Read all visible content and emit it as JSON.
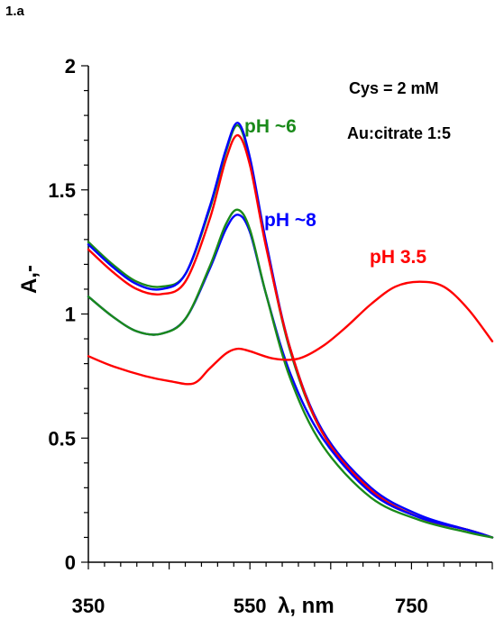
{
  "panel_label": "1.a",
  "annotations": [
    "Cys = 2 mM",
    "Au:citrate 1:5"
  ],
  "colors": {
    "red": "#ff0000",
    "green": "#1a8a1a",
    "blue": "#0000ff",
    "axis": "#000000"
  },
  "chart_data": {
    "type": "line",
    "title": "",
    "xlabel": "λ, nm",
    "ylabel": "A,-",
    "xlim": [
      350,
      850
    ],
    "ylim": [
      0,
      2
    ],
    "x_ticks": [
      350,
      550,
      750
    ],
    "y_ticks": [
      0,
      0.5,
      1,
      1.5,
      2
    ],
    "y_tick_labels": [
      "0",
      "0.5",
      "1",
      "1.5",
      "2"
    ],
    "grid": false,
    "series": [
      {
        "name": "pH ~6",
        "color": "#1a8a1a",
        "x": [
          350,
          380,
          410,
          440,
          470,
          500,
          520,
          535,
          550,
          570,
          600,
          640,
          700,
          760,
          820,
          850
        ],
        "y": [
          1.29,
          1.2,
          1.13,
          1.11,
          1.16,
          1.42,
          1.65,
          1.76,
          1.62,
          1.28,
          0.85,
          0.52,
          0.29,
          0.18,
          0.13,
          0.1
        ]
      },
      {
        "x": [
          350,
          380,
          410,
          440,
          470,
          500,
          520,
          535,
          550,
          570,
          600,
          640,
          700,
          760,
          820,
          850
        ],
        "y": [
          1.28,
          1.19,
          1.12,
          1.1,
          1.16,
          1.43,
          1.66,
          1.77,
          1.63,
          1.29,
          0.86,
          0.53,
          0.3,
          0.19,
          0.13,
          0.1
        ],
        "color": "#0000ff"
      },
      {
        "x": [
          350,
          380,
          410,
          440,
          470,
          500,
          520,
          535,
          550,
          570,
          600,
          640,
          700,
          760,
          820,
          850
        ],
        "y": [
          1.26,
          1.17,
          1.1,
          1.08,
          1.13,
          1.38,
          1.62,
          1.72,
          1.6,
          1.27,
          0.86,
          0.52,
          0.29,
          0.18,
          0.13,
          0.1
        ],
        "color": "#ff0000"
      },
      {
        "name": "pH ~8",
        "color": "#0000ff",
        "x": [
          350,
          380,
          410,
          440,
          470,
          500,
          520,
          535,
          550,
          570,
          600,
          640,
          700,
          760,
          820,
          850
        ],
        "y": [
          1.07,
          0.99,
          0.93,
          0.92,
          0.98,
          1.18,
          1.34,
          1.4,
          1.33,
          1.08,
          0.76,
          0.5,
          0.28,
          0.18,
          0.13,
          0.1
        ]
      },
      {
        "x": [
          350,
          380,
          410,
          440,
          470,
          500,
          520,
          535,
          550,
          570,
          600,
          640,
          700,
          760,
          820,
          850
        ],
        "y": [
          1.07,
          0.99,
          0.93,
          0.92,
          0.98,
          1.19,
          1.36,
          1.42,
          1.34,
          1.08,
          0.74,
          0.47,
          0.26,
          0.17,
          0.12,
          0.1
        ],
        "color": "#1a8a1a"
      },
      {
        "name": "pH 3.5",
        "color": "#ff0000",
        "x": [
          350,
          380,
          420,
          450,
          480,
          500,
          520,
          535,
          550,
          580,
          610,
          640,
          670,
          700,
          730,
          760,
          790,
          820,
          850
        ],
        "y": [
          0.83,
          0.79,
          0.75,
          0.73,
          0.72,
          0.78,
          0.84,
          0.86,
          0.85,
          0.82,
          0.82,
          0.87,
          0.95,
          1.04,
          1.11,
          1.13,
          1.11,
          1.02,
          0.89
        ]
      }
    ],
    "series_labels": [
      {
        "text": "pH ~6",
        "color": "#1a8a1a"
      },
      {
        "text": "pH ~8",
        "color": "#0000ff"
      },
      {
        "text": "pH 3.5",
        "color": "#ff0000"
      }
    ]
  }
}
